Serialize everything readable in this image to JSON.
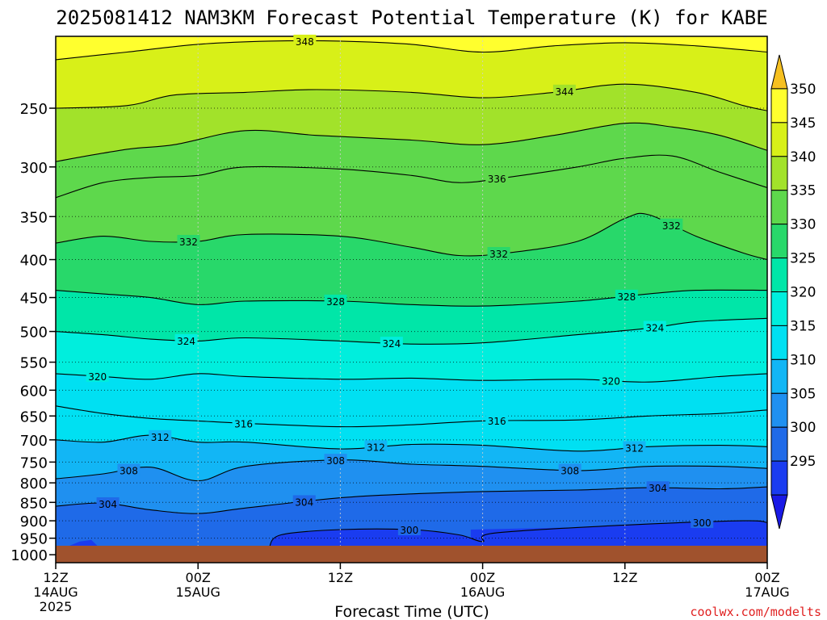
{
  "chart_data": {
    "type": "heatmap",
    "title": "2025081412 NAM3KM Forecast Potential Temperature (K) for KABE",
    "xlabel": "Forecast Time (UTC)",
    "ylabel": "",
    "credit": "coolwx.com/modelts",
    "x_ticks": [
      {
        "hours": 0,
        "line1": "12Z",
        "line2": "14AUG",
        "line3": "2025"
      },
      {
        "hours": 12,
        "line1": "00Z",
        "line2": "15AUG",
        "line3": ""
      },
      {
        "hours": 24,
        "line1": "12Z",
        "line2": "",
        "line3": ""
      },
      {
        "hours": 36,
        "line1": "00Z",
        "line2": "16AUG",
        "line3": ""
      },
      {
        "hours": 48,
        "line1": "12Z",
        "line2": "",
        "line3": ""
      },
      {
        "hours": 60,
        "line1": "00Z",
        "line2": "17AUG",
        "line3": ""
      }
    ],
    "xlim": [
      0,
      60
    ],
    "y_ticks": [
      250,
      300,
      350,
      400,
      450,
      500,
      550,
      600,
      650,
      700,
      750,
      800,
      850,
      900,
      950,
      1000
    ],
    "ylim": [
      200,
      1025
    ],
    "y_scale": "log",
    "grid": true,
    "colorbar": {
      "levels": [
        295,
        300,
        305,
        310,
        315,
        320,
        325,
        330,
        335,
        340,
        345,
        350
      ],
      "colors": [
        "#1a1ae6",
        "#1a3cf0",
        "#1f6ae8",
        "#1f90f0",
        "#12b6f5",
        "#00e0f2",
        "#00eedd",
        "#00e6a8",
        "#28d86a",
        "#5ed84c",
        "#a2e22a",
        "#d8f018",
        "#ffff2e",
        "#f6c020"
      ]
    },
    "contours": [
      {
        "theta": 300,
        "label": "300",
        "points": [
          [
            18,
            978
          ],
          [
            19,
            940
          ],
          [
            24,
            925
          ],
          [
            30,
            925
          ],
          [
            34,
            940
          ],
          [
            36,
            960
          ],
          [
            37,
            935
          ],
          [
            48,
            912
          ],
          [
            58,
            900
          ],
          [
            60,
            905
          ]
        ]
      },
      {
        "theta": 304,
        "label": "304",
        "points": [
          [
            0,
            860
          ],
          [
            4,
            852
          ],
          [
            8,
            870
          ],
          [
            12,
            880
          ],
          [
            16,
            865
          ],
          [
            24,
            838
          ],
          [
            30,
            828
          ],
          [
            36,
            822
          ],
          [
            44,
            818
          ],
          [
            50,
            812
          ],
          [
            56,
            815
          ],
          [
            60,
            810
          ]
        ]
      },
      {
        "theta": 308,
        "label": "308",
        "points": [
          [
            0,
            790
          ],
          [
            4,
            778
          ],
          [
            8,
            762
          ],
          [
            12,
            795
          ],
          [
            16,
            760
          ],
          [
            24,
            745
          ],
          [
            30,
            755
          ],
          [
            36,
            760
          ],
          [
            44,
            770
          ],
          [
            50,
            760
          ],
          [
            56,
            760
          ],
          [
            60,
            765
          ]
        ]
      },
      {
        "theta": 312,
        "label": "312",
        "points": [
          [
            0,
            700
          ],
          [
            4,
            705
          ],
          [
            8,
            690
          ],
          [
            12,
            705
          ],
          [
            16,
            705
          ],
          [
            24,
            720
          ],
          [
            30,
            710
          ],
          [
            36,
            712
          ],
          [
            44,
            725
          ],
          [
            50,
            715
          ],
          [
            56,
            712
          ],
          [
            60,
            715
          ]
        ]
      },
      {
        "theta": 316,
        "label": "316",
        "points": [
          [
            0,
            630
          ],
          [
            4,
            645
          ],
          [
            8,
            655
          ],
          [
            12,
            660
          ],
          [
            16,
            665
          ],
          [
            24,
            672
          ],
          [
            30,
            668
          ],
          [
            36,
            660
          ],
          [
            44,
            658
          ],
          [
            50,
            650
          ],
          [
            56,
            645
          ],
          [
            60,
            638
          ]
        ]
      },
      {
        "theta": 320,
        "label": "320",
        "points": [
          [
            0,
            570
          ],
          [
            4,
            575
          ],
          [
            8,
            580
          ],
          [
            12,
            570
          ],
          [
            16,
            575
          ],
          [
            24,
            580
          ],
          [
            30,
            578
          ],
          [
            36,
            582
          ],
          [
            44,
            580
          ],
          [
            50,
            585
          ],
          [
            56,
            575
          ],
          [
            60,
            570
          ]
        ]
      },
      {
        "theta": 324,
        "label": "324",
        "points": [
          [
            0,
            500
          ],
          [
            4,
            505
          ],
          [
            8,
            512
          ],
          [
            12,
            515
          ],
          [
            16,
            510
          ],
          [
            24,
            515
          ],
          [
            30,
            520
          ],
          [
            36,
            518
          ],
          [
            44,
            505
          ],
          [
            50,
            495
          ],
          [
            54,
            485
          ],
          [
            60,
            480
          ]
        ]
      },
      {
        "theta": 328,
        "label": "328",
        "points": [
          [
            0,
            440
          ],
          [
            4,
            445
          ],
          [
            8,
            450
          ],
          [
            12,
            460
          ],
          [
            16,
            455
          ],
          [
            24,
            455
          ],
          [
            30,
            460
          ],
          [
            36,
            462
          ],
          [
            44,
            455
          ],
          [
            50,
            445
          ],
          [
            54,
            440
          ],
          [
            60,
            440
          ]
        ]
      },
      {
        "theta": 332,
        "label": "332",
        "points": [
          [
            0,
            380
          ],
          [
            4,
            372
          ],
          [
            8,
            378
          ],
          [
            12,
            378
          ],
          [
            16,
            370
          ],
          [
            24,
            372
          ],
          [
            30,
            385
          ],
          [
            34,
            395
          ],
          [
            38,
            392
          ],
          [
            44,
            378
          ],
          [
            48,
            352
          ],
          [
            50,
            348
          ],
          [
            54,
            372
          ],
          [
            58,
            392
          ],
          [
            60,
            400
          ]
        ]
      },
      {
        "theta": 336,
        "label": "336",
        "points": [
          [
            0,
            330
          ],
          [
            4,
            315
          ],
          [
            8,
            310
          ],
          [
            12,
            308
          ],
          [
            16,
            300
          ],
          [
            24,
            302
          ],
          [
            30,
            308
          ],
          [
            34,
            315
          ],
          [
            38,
            310
          ],
          [
            44,
            300
          ],
          [
            48,
            292
          ],
          [
            52,
            290
          ],
          [
            56,
            305
          ],
          [
            60,
            320
          ]
        ]
      },
      {
        "theta": 340,
        "label": "",
        "points": [
          [
            0,
            295
          ],
          [
            6,
            284
          ],
          [
            10,
            280
          ],
          [
            16,
            268
          ],
          [
            22,
            272
          ],
          [
            30,
            276
          ],
          [
            36,
            280
          ],
          [
            42,
            272
          ],
          [
            48,
            262
          ],
          [
            52,
            265
          ],
          [
            56,
            272
          ],
          [
            60,
            285
          ]
        ]
      },
      {
        "theta": 344,
        "label": "344",
        "points": [
          [
            0,
            250
          ],
          [
            6,
            248
          ],
          [
            10,
            240
          ],
          [
            16,
            238
          ],
          [
            22,
            236
          ],
          [
            30,
            238
          ],
          [
            36,
            242
          ],
          [
            42,
            238
          ],
          [
            48,
            232
          ],
          [
            54,
            238
          ],
          [
            58,
            248
          ],
          [
            60,
            252
          ]
        ]
      },
      {
        "theta": 348,
        "label": "348",
        "points": [
          [
            0,
            215
          ],
          [
            6,
            210
          ],
          [
            12,
            205
          ],
          [
            18,
            203
          ],
          [
            24,
            203
          ],
          [
            30,
            205
          ],
          [
            36,
            210
          ],
          [
            42,
            206
          ],
          [
            48,
            204
          ],
          [
            54,
            206
          ],
          [
            60,
            210
          ]
        ]
      }
    ],
    "fill_boundaries": [
      {
        "upper_theta": 300,
        "points": [
          [
            0,
            990
          ],
          [
            2,
            960
          ],
          [
            3,
            955
          ],
          [
            4,
            990
          ],
          [
            18,
            990
          ],
          [
            18,
            975
          ],
          [
            20,
            935
          ],
          [
            24,
            925
          ],
          [
            28,
            935
          ],
          [
            30,
            975
          ],
          [
            30,
            990
          ],
          [
            35,
            990
          ],
          [
            35,
            925
          ],
          [
            45,
            918
          ],
          [
            58,
            920
          ],
          [
            58,
            990
          ],
          [
            60,
            990
          ]
        ]
      }
    ]
  }
}
